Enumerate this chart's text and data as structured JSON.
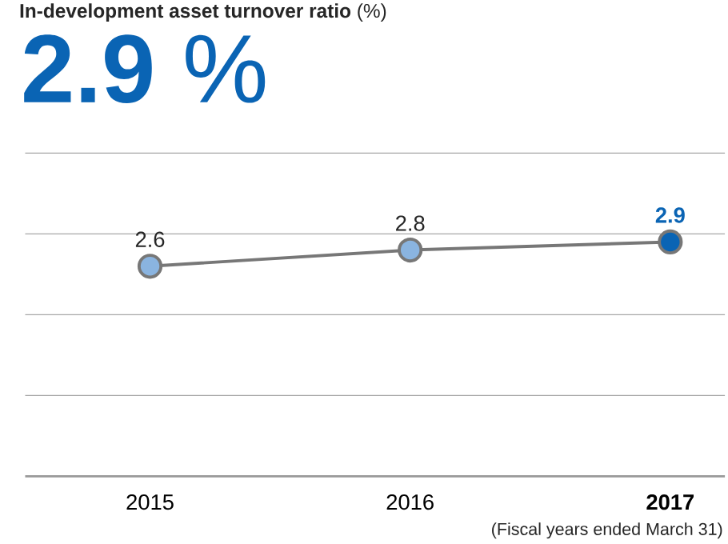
{
  "chart_data": {
    "type": "line",
    "title": "**In-development asset turnover ratio** (%)",
    "subtitle": "**2.9** %",
    "categories": [
      "2015",
      "2016",
      "2017"
    ],
    "series": [
      {
        "color": "#777777",
        "colors": [
          "#8ab4e0",
          "#8ab4e0",
          "#0a64b4"
        ],
        "values": [
          2.6,
          2.8,
          2.9
        ]
      }
    ],
    "ylim": [
      0,
      4
    ],
    "tick_labels": "x",
    "grid": "y",
    "marker": "circle",
    "line_style": "solid",
    "data_labels": true,
    "annotations": [
      "(Fiscal years ended March 31)"
    ]
  }
}
